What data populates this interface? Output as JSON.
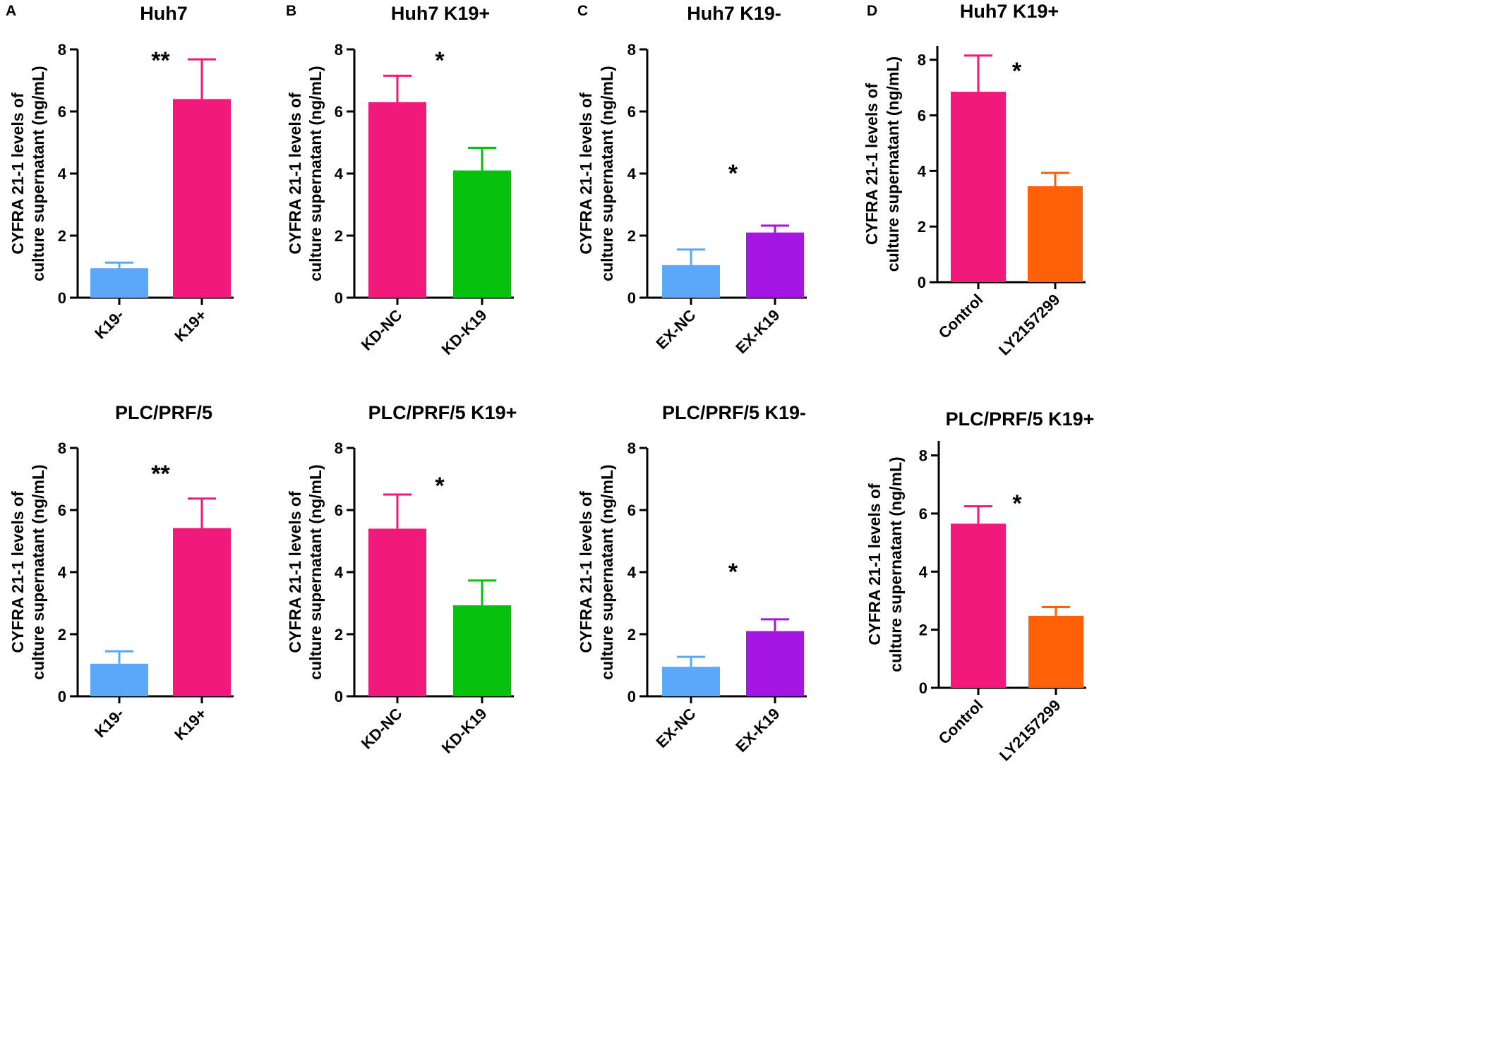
{
  "panel_letters": [
    "A",
    "B",
    "C",
    "D"
  ],
  "chart_data": [
    {
      "panel": "A",
      "type": "bar",
      "title": "Huh7",
      "ylabel": [
        "CYFRA 21-1 levels of",
        "culture supernatant (ng/mL)"
      ],
      "ylim": [
        0,
        8
      ],
      "yticks": [
        0,
        2,
        4,
        6,
        8
      ],
      "categories": [
        "K19-",
        "K19+"
      ],
      "values": [
        0.95,
        6.4
      ],
      "errors": [
        0.18,
        1.28
      ],
      "colors": [
        "#5aa8f8",
        "#f2197d"
      ],
      "significance": "**"
    },
    {
      "panel": "B",
      "type": "bar",
      "title": "Huh7 K19+",
      "ylabel": [
        "CYFRA 21-1 levels of",
        "culture supernatant (ng/mL)"
      ],
      "ylim": [
        0,
        8
      ],
      "yticks": [
        0,
        2,
        4,
        6,
        8
      ],
      "categories": [
        "KD-NC",
        "KD-K19"
      ],
      "values": [
        6.3,
        4.1
      ],
      "errors": [
        0.85,
        0.73
      ],
      "colors": [
        "#f2197d",
        "#08c10e"
      ],
      "significance": "*"
    },
    {
      "panel": "C",
      "type": "bar",
      "title": "Huh7 K19-",
      "ylabel": [
        "CYFRA 21-1 levels of",
        "culture supernatant (ng/mL)"
      ],
      "ylim": [
        0,
        8
      ],
      "yticks": [
        0,
        2,
        4,
        6,
        8
      ],
      "categories": [
        "EX-NC",
        "EX-K19"
      ],
      "values": [
        1.05,
        2.1
      ],
      "errors": [
        0.5,
        0.22
      ],
      "colors": [
        "#5aa8f8",
        "#a516e4"
      ],
      "significance": "*"
    },
    {
      "panel": "D",
      "type": "bar",
      "title": "Huh7 K19+",
      "ylabel": [
        "CYFRA 21-1 levels of",
        "culture supernatant (ng/mL)"
      ],
      "ylim": [
        0,
        8.5
      ],
      "yticks": [
        0,
        2,
        4,
        6,
        8
      ],
      "categories": [
        "Control",
        "LY2157299"
      ],
      "values": [
        6.85,
        3.45
      ],
      "errors": [
        1.3,
        0.48
      ],
      "colors": [
        "#f2197d",
        "#ff6008"
      ],
      "significance": "*"
    },
    {
      "panel": "",
      "type": "bar",
      "title": "PLC/PRF/5",
      "ylabel": [
        "CYFRA 21-1 levels of",
        "culture supernatant (ng/mL)"
      ],
      "ylim": [
        0,
        8
      ],
      "yticks": [
        0,
        2,
        4,
        6,
        8
      ],
      "categories": [
        "K19-",
        "K19+"
      ],
      "values": [
        1.05,
        5.42
      ],
      "errors": [
        0.4,
        0.95
      ],
      "colors": [
        "#5aa8f8",
        "#f2197d"
      ],
      "significance": "**"
    },
    {
      "panel": "",
      "type": "bar",
      "title": "PLC/PRF/5 K19+",
      "ylabel": [
        "CYFRA 21-1 levels of",
        "culture supernatant (ng/mL)"
      ],
      "ylim": [
        0,
        8
      ],
      "yticks": [
        0,
        2,
        4,
        6,
        8
      ],
      "categories": [
        "KD-NC",
        "KD-K19"
      ],
      "values": [
        5.4,
        2.93
      ],
      "errors": [
        1.1,
        0.8
      ],
      "colors": [
        "#f2197d",
        "#08c10e"
      ],
      "significance": "*"
    },
    {
      "panel": "",
      "type": "bar",
      "title": "PLC/PRF/5 K19-",
      "ylabel": [
        "CYFRA 21-1 levels of",
        "culture supernatant (ng/mL)"
      ],
      "ylim": [
        0,
        8
      ],
      "yticks": [
        0,
        2,
        4,
        6,
        8
      ],
      "categories": [
        "EX-NC",
        "EX-K19"
      ],
      "values": [
        0.95,
        2.1
      ],
      "errors": [
        0.32,
        0.38
      ],
      "colors": [
        "#5aa8f8",
        "#a516e4"
      ],
      "significance": "*"
    },
    {
      "panel": "",
      "type": "bar",
      "title": "PLC/PRF/5 K19+",
      "ylabel": [
        "CYFRA 21-1 levels of",
        "culture supernatant (ng/mL)"
      ],
      "ylim": [
        0,
        8.5
      ],
      "yticks": [
        0,
        2,
        4,
        6,
        8
      ],
      "categories": [
        "Control",
        "LY2157299"
      ],
      "values": [
        5.65,
        2.48
      ],
      "errors": [
        0.6,
        0.3
      ],
      "colors": [
        "#f2197d",
        "#ff6008"
      ],
      "significance": "*"
    }
  ]
}
